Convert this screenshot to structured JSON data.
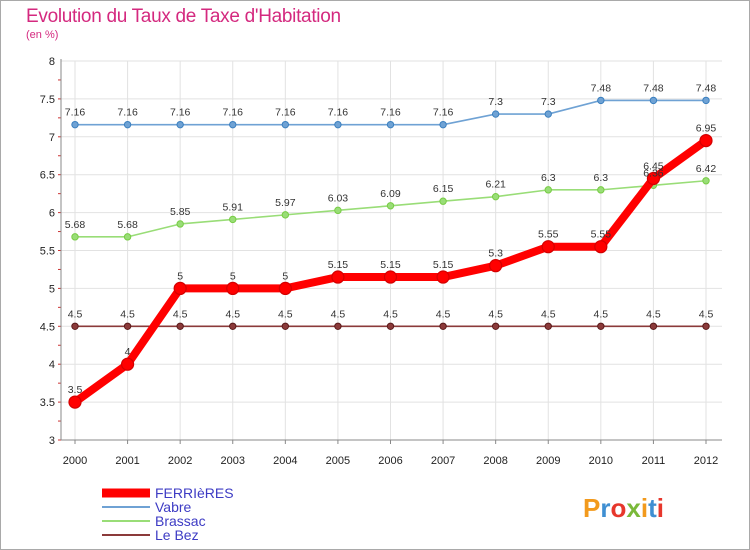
{
  "header": {
    "title": "Evolution du Taux de Taxe d'Habitation",
    "subtitle": "(en %)"
  },
  "logo": {
    "text": "Proxiti"
  },
  "chart_data": {
    "type": "line",
    "title": "Evolution du Taux de Taxe d'Habitation",
    "ylabel": "(en %)",
    "xlabel": "",
    "ylim": [
      3,
      8
    ],
    "yticks": [
      "3",
      "3.5",
      "4",
      "4.5",
      "5",
      "5.5",
      "6",
      "6.5",
      "7",
      "7.5",
      "8"
    ],
    "categories": [
      "2000",
      "2001",
      "2002",
      "2003",
      "2004",
      "2005",
      "2006",
      "2007",
      "2008",
      "2009",
      "2010",
      "2011",
      "2012"
    ],
    "legend_position": "bottom-left",
    "series": [
      {
        "name": "FERRIèRES",
        "color": "#ff0000",
        "marker": "#d40000",
        "bold": true,
        "values": [
          3.5,
          4,
          5,
          5,
          5,
          5.15,
          5.15,
          5.15,
          5.3,
          5.55,
          5.55,
          6.45,
          6.95
        ],
        "labels": [
          "3.5",
          "4",
          "5",
          "5",
          "5",
          "5.15",
          "5.15",
          "5.15",
          "5.3",
          "5.55",
          "5.55",
          "6.45",
          "6.95"
        ]
      },
      {
        "name": "Vabre",
        "color": "#6fa2d4",
        "marker": "#3a7fbf",
        "bold": false,
        "values": [
          7.16,
          7.16,
          7.16,
          7.16,
          7.16,
          7.16,
          7.16,
          7.16,
          7.3,
          7.3,
          7.48,
          7.48,
          7.48
        ],
        "labels": [
          "7.16",
          "7.16",
          "7.16",
          "7.16",
          "7.16",
          "7.16",
          "7.16",
          "7.16",
          "7.3",
          "7.3",
          "7.48",
          "7.48",
          "7.48"
        ]
      },
      {
        "name": "Brassac",
        "color": "#99dd77",
        "marker": "#77cc44",
        "bold": false,
        "values": [
          5.68,
          5.68,
          5.85,
          5.91,
          5.97,
          6.03,
          6.09,
          6.15,
          6.21,
          6.3,
          6.3,
          6.36,
          6.42
        ],
        "labels": [
          "5.68",
          "5.68",
          "5.85",
          "5.91",
          "5.97",
          "6.03",
          "6.09",
          "6.15",
          "6.21",
          "6.3",
          "6.3",
          "6.36",
          "6.42"
        ]
      },
      {
        "name": "Le Bez",
        "color": "#8b3a3a",
        "marker": "#5a1a1a",
        "bold": false,
        "values": [
          4.5,
          4.5,
          4.5,
          4.5,
          4.5,
          4.5,
          4.5,
          4.5,
          4.5,
          4.5,
          4.5,
          4.5,
          4.5
        ],
        "labels": [
          "4.5",
          "4.5",
          "4.5",
          "4.5",
          "4.5",
          "4.5",
          "4.5",
          "4.5",
          "4.5",
          "4.5",
          "4.5",
          "4.5",
          "4.5"
        ]
      }
    ]
  }
}
